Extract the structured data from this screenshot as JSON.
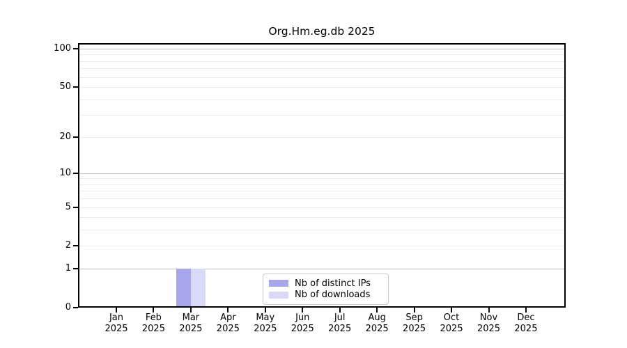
{
  "chart_data": {
    "type": "bar",
    "title": "Org.Hm.eg.db 2025",
    "categories": [
      "Jan",
      "Feb",
      "Mar",
      "Apr",
      "May",
      "Jun",
      "Jul",
      "Aug",
      "Sep",
      "Oct",
      "Nov",
      "Dec"
    ],
    "tick_year": "2025",
    "series": [
      {
        "name": "Nb of distinct IPs",
        "color": "#a7a7ee",
        "values": [
          0,
          0,
          1,
          0,
          0,
          0,
          0,
          0,
          0,
          0,
          0,
          0
        ]
      },
      {
        "name": "Nb of downloads",
        "color": "#d9d9f8",
        "values": [
          0,
          0,
          1,
          0,
          0,
          0,
          0,
          0,
          0,
          0,
          0,
          0
        ]
      }
    ],
    "yscale": "log1p",
    "ylim": [
      0,
      110
    ],
    "ytick_values": [
      100,
      50,
      20,
      10,
      5,
      2,
      1,
      0
    ],
    "ytick_labels": [
      "100",
      "50",
      "20",
      "10",
      "5",
      "2",
      "1",
      "0"
    ],
    "minor_gridlines": [
      2,
      3,
      4,
      5,
      6,
      7,
      8,
      9,
      20,
      30,
      40,
      60,
      70,
      80,
      90
    ],
    "major_gridlines": [
      1,
      10,
      50,
      100
    ],
    "grid": "on",
    "legend_position": "lower center"
  },
  "colors": {
    "axis": "#000000",
    "text": "#000000",
    "major_grid": "#c2c2c2",
    "minor_grid": "#ebebeb",
    "legend_border": "#cccccc",
    "background": "#ffffff"
  }
}
